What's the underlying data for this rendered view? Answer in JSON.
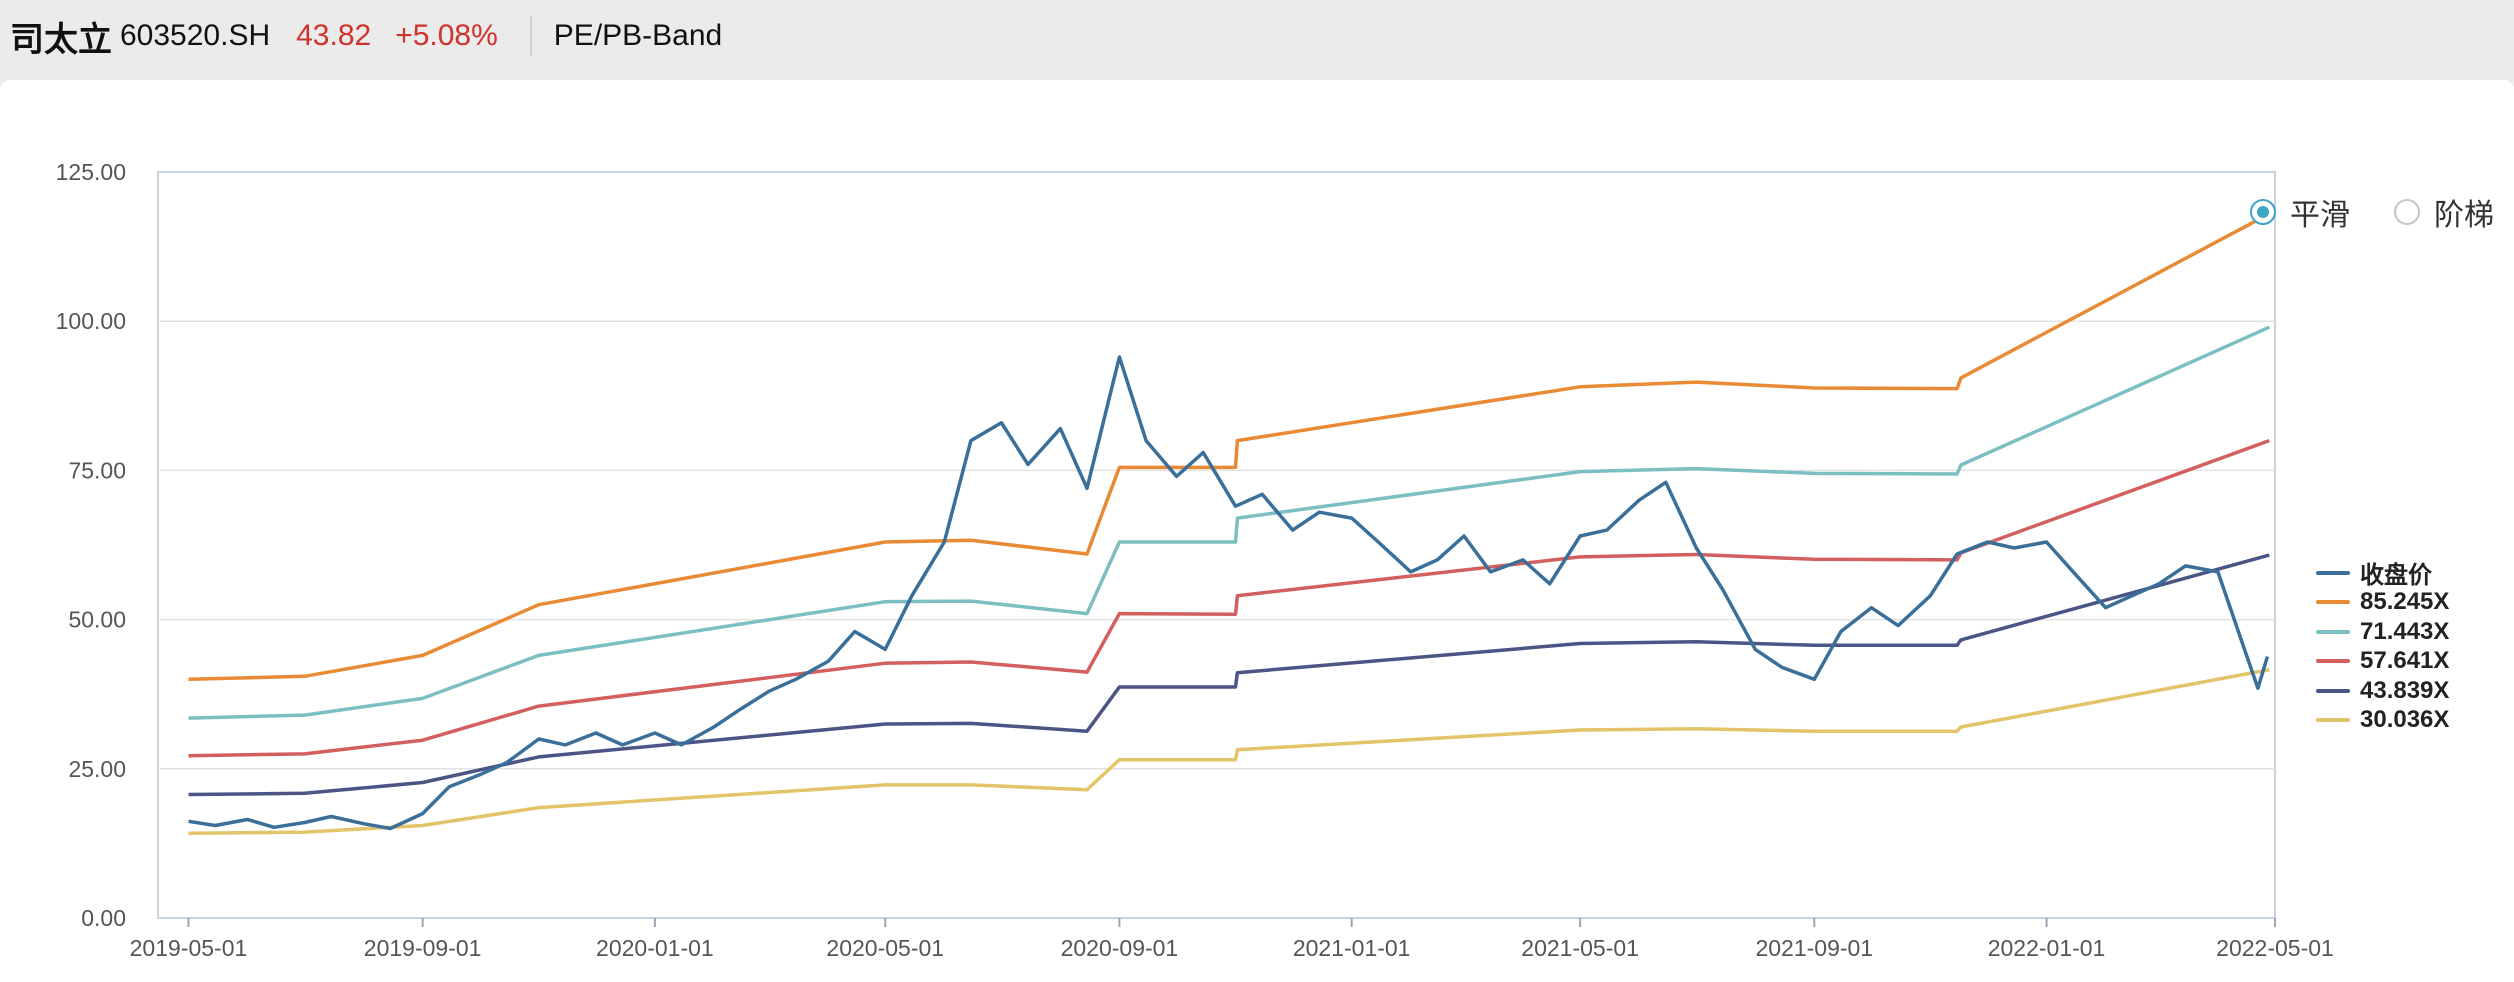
{
  "header": {
    "stock_name": "司太立",
    "stock_code": "603520.SH",
    "price": "43.82",
    "change": "+5.08%",
    "tab": "PE/PB-Band"
  },
  "controls": {
    "options": [
      {
        "label": "平滑",
        "selected": true
      },
      {
        "label": "阶梯",
        "selected": false
      }
    ]
  },
  "colors": {
    "up": "#d0322c",
    "accent": "#3ca7c4"
  },
  "chart_data": {
    "type": "line",
    "title": "",
    "xlabel": "",
    "ylabel": "",
    "ylim": [
      0,
      125
    ],
    "xlim": [
      "2019-04-15",
      "2022-05-01"
    ],
    "y_ticks": [
      "0.00",
      "25.00",
      "50.00",
      "75.00",
      "100.00",
      "125.00"
    ],
    "x_ticks": [
      "2019-05-01",
      "2019-09-01",
      "2020-01-01",
      "2020-05-01",
      "2020-09-01",
      "2021-01-01",
      "2021-05-01",
      "2021-09-01",
      "2022-01-01",
      "2022-05-01"
    ],
    "grid": true,
    "legend_position": "right",
    "series": [
      {
        "name": "收盘价",
        "color": "#3a6f9a",
        "points": [
          [
            "2019-05-01",
            16.2
          ],
          [
            "2019-05-15",
            15.5
          ],
          [
            "2019-06-01",
            16.5
          ],
          [
            "2019-06-15",
            15.2
          ],
          [
            "2019-07-01",
            16.0
          ],
          [
            "2019-07-15",
            17.0
          ],
          [
            "2019-08-01",
            15.8
          ],
          [
            "2019-08-15",
            15.0
          ],
          [
            "2019-09-01",
            17.5
          ],
          [
            "2019-09-15",
            22.0
          ],
          [
            "2019-10-01",
            24.0
          ],
          [
            "2019-10-15",
            26.0
          ],
          [
            "2019-11-01",
            30.0
          ],
          [
            "2019-11-15",
            29.0
          ],
          [
            "2019-12-01",
            31.0
          ],
          [
            "2019-12-15",
            29.0
          ],
          [
            "2020-01-01",
            31.0
          ],
          [
            "2020-01-15",
            29.0
          ],
          [
            "2020-02-01",
            32.0
          ],
          [
            "2020-02-15",
            35.0
          ],
          [
            "2020-03-01",
            38.0
          ],
          [
            "2020-03-15",
            40.0
          ],
          [
            "2020-04-01",
            43.0
          ],
          [
            "2020-04-15",
            48.0
          ],
          [
            "2020-05-01",
            45.0
          ],
          [
            "2020-05-15",
            54.0
          ],
          [
            "2020-06-01",
            63.0
          ],
          [
            "2020-06-15",
            80.0
          ],
          [
            "2020-07-01",
            83.0
          ],
          [
            "2020-07-15",
            76.0
          ],
          [
            "2020-08-01",
            82.0
          ],
          [
            "2020-08-15",
            72.0
          ],
          [
            "2020-09-01",
            94.0
          ],
          [
            "2020-09-15",
            80.0
          ],
          [
            "2020-10-01",
            74.0
          ],
          [
            "2020-10-15",
            78.0
          ],
          [
            "2020-11-01",
            69.0
          ],
          [
            "2020-11-15",
            71.0
          ],
          [
            "2020-12-01",
            65.0
          ],
          [
            "2020-12-15",
            68.0
          ],
          [
            "2021-01-01",
            67.0
          ],
          [
            "2021-01-15",
            63.0
          ],
          [
            "2021-02-01",
            58.0
          ],
          [
            "2021-02-15",
            60.0
          ],
          [
            "2021-03-01",
            64.0
          ],
          [
            "2021-03-15",
            58.0
          ],
          [
            "2021-04-01",
            60.0
          ],
          [
            "2021-04-15",
            56.0
          ],
          [
            "2021-05-01",
            64.0
          ],
          [
            "2021-05-15",
            65.0
          ],
          [
            "2021-06-01",
            70.0
          ],
          [
            "2021-06-15",
            73.0
          ],
          [
            "2021-07-01",
            62.0
          ],
          [
            "2021-07-15",
            55.0
          ],
          [
            "2021-08-01",
            45.0
          ],
          [
            "2021-08-15",
            42.0
          ],
          [
            "2021-09-01",
            40.0
          ],
          [
            "2021-09-15",
            48.0
          ],
          [
            "2021-10-01",
            52.0
          ],
          [
            "2021-10-15",
            49.0
          ],
          [
            "2021-11-01",
            54.0
          ],
          [
            "2021-11-15",
            61.0
          ],
          [
            "2021-12-01",
            63.0
          ],
          [
            "2021-12-15",
            62.0
          ],
          [
            "2022-01-01",
            63.0
          ],
          [
            "2022-01-15",
            58.0
          ],
          [
            "2022-02-01",
            52.0
          ],
          [
            "2022-02-15",
            54.0
          ],
          [
            "2022-03-01",
            56.0
          ],
          [
            "2022-03-15",
            59.0
          ],
          [
            "2022-04-01",
            58.0
          ],
          [
            "2022-04-15",
            45.0
          ],
          [
            "2022-04-22",
            38.5
          ],
          [
            "2022-04-27",
            43.8
          ]
        ]
      },
      {
        "name": "85.245X",
        "color": "#e98a35",
        "points": [
          [
            "2019-05-01",
            40.0
          ],
          [
            "2019-07-01",
            40.5
          ],
          [
            "2019-09-01",
            44.0
          ],
          [
            "2019-11-01",
            52.5
          ],
          [
            "2020-05-01",
            63.0
          ],
          [
            "2020-06-15",
            63.3
          ],
          [
            "2020-08-15",
            61.0
          ],
          [
            "2020-09-01",
            75.5
          ],
          [
            "2020-11-01",
            75.5
          ],
          [
            "2020-11-02",
            80.0
          ],
          [
            "2021-05-01",
            89.0
          ],
          [
            "2021-07-01",
            89.8
          ],
          [
            "2021-09-01",
            88.8
          ],
          [
            "2021-11-15",
            88.7
          ],
          [
            "2021-11-17",
            90.5
          ],
          [
            "2022-04-28",
            118.0
          ]
        ]
      },
      {
        "name": "71.443X",
        "color": "#7cbfc2",
        "points": [
          [
            "2019-05-01",
            33.5
          ],
          [
            "2019-07-01",
            34.0
          ],
          [
            "2019-09-01",
            36.8
          ],
          [
            "2019-11-01",
            44.0
          ],
          [
            "2020-05-01",
            53.0
          ],
          [
            "2020-06-15",
            53.1
          ],
          [
            "2020-08-15",
            51.0
          ],
          [
            "2020-09-01",
            63.0
          ],
          [
            "2020-11-01",
            63.0
          ],
          [
            "2020-11-02",
            67.0
          ],
          [
            "2021-05-01",
            74.8
          ],
          [
            "2021-07-01",
            75.3
          ],
          [
            "2021-09-01",
            74.5
          ],
          [
            "2021-11-15",
            74.4
          ],
          [
            "2021-11-17",
            75.9
          ],
          [
            "2022-04-28",
            99.0
          ]
        ]
      },
      {
        "name": "57.641X",
        "color": "#d35f5f",
        "points": [
          [
            "2019-05-01",
            27.2
          ],
          [
            "2019-07-01",
            27.5
          ],
          [
            "2019-09-01",
            29.8
          ],
          [
            "2019-11-01",
            35.5
          ],
          [
            "2020-05-01",
            42.7
          ],
          [
            "2020-06-15",
            42.9
          ],
          [
            "2020-08-15",
            41.2
          ],
          [
            "2020-09-01",
            51.0
          ],
          [
            "2020-11-01",
            50.9
          ],
          [
            "2020-11-02",
            54.0
          ],
          [
            "2021-05-01",
            60.5
          ],
          [
            "2021-07-01",
            60.9
          ],
          [
            "2021-09-01",
            60.1
          ],
          [
            "2021-11-15",
            60.0
          ],
          [
            "2021-11-17",
            61.2
          ],
          [
            "2022-04-28",
            80.0
          ]
        ]
      },
      {
        "name": "43.839X",
        "color": "#4a5586",
        "points": [
          [
            "2019-05-01",
            20.7
          ],
          [
            "2019-07-01",
            20.9
          ],
          [
            "2019-09-01",
            22.7
          ],
          [
            "2019-11-01",
            27.0
          ],
          [
            "2020-05-01",
            32.5
          ],
          [
            "2020-06-15",
            32.6
          ],
          [
            "2020-08-15",
            31.3
          ],
          [
            "2020-09-01",
            38.7
          ],
          [
            "2020-11-01",
            38.7
          ],
          [
            "2020-11-02",
            41.1
          ],
          [
            "2021-05-01",
            46.0
          ],
          [
            "2021-07-01",
            46.3
          ],
          [
            "2021-09-01",
            45.7
          ],
          [
            "2021-11-15",
            45.7
          ],
          [
            "2021-11-17",
            46.6
          ],
          [
            "2022-04-28",
            60.8
          ]
        ]
      },
      {
        "name": "30.036X",
        "color": "#e3c46a",
        "points": [
          [
            "2019-05-01",
            14.2
          ],
          [
            "2019-07-01",
            14.4
          ],
          [
            "2019-09-01",
            15.5
          ],
          [
            "2019-11-01",
            18.5
          ],
          [
            "2020-05-01",
            22.3
          ],
          [
            "2020-06-15",
            22.3
          ],
          [
            "2020-08-15",
            21.5
          ],
          [
            "2020-09-01",
            26.5
          ],
          [
            "2020-11-01",
            26.5
          ],
          [
            "2020-11-02",
            28.2
          ],
          [
            "2021-05-01",
            31.5
          ],
          [
            "2021-07-01",
            31.7
          ],
          [
            "2021-09-01",
            31.3
          ],
          [
            "2021-11-15",
            31.3
          ],
          [
            "2021-11-17",
            32.0
          ],
          [
            "2022-04-28",
            41.6
          ]
        ]
      }
    ]
  }
}
